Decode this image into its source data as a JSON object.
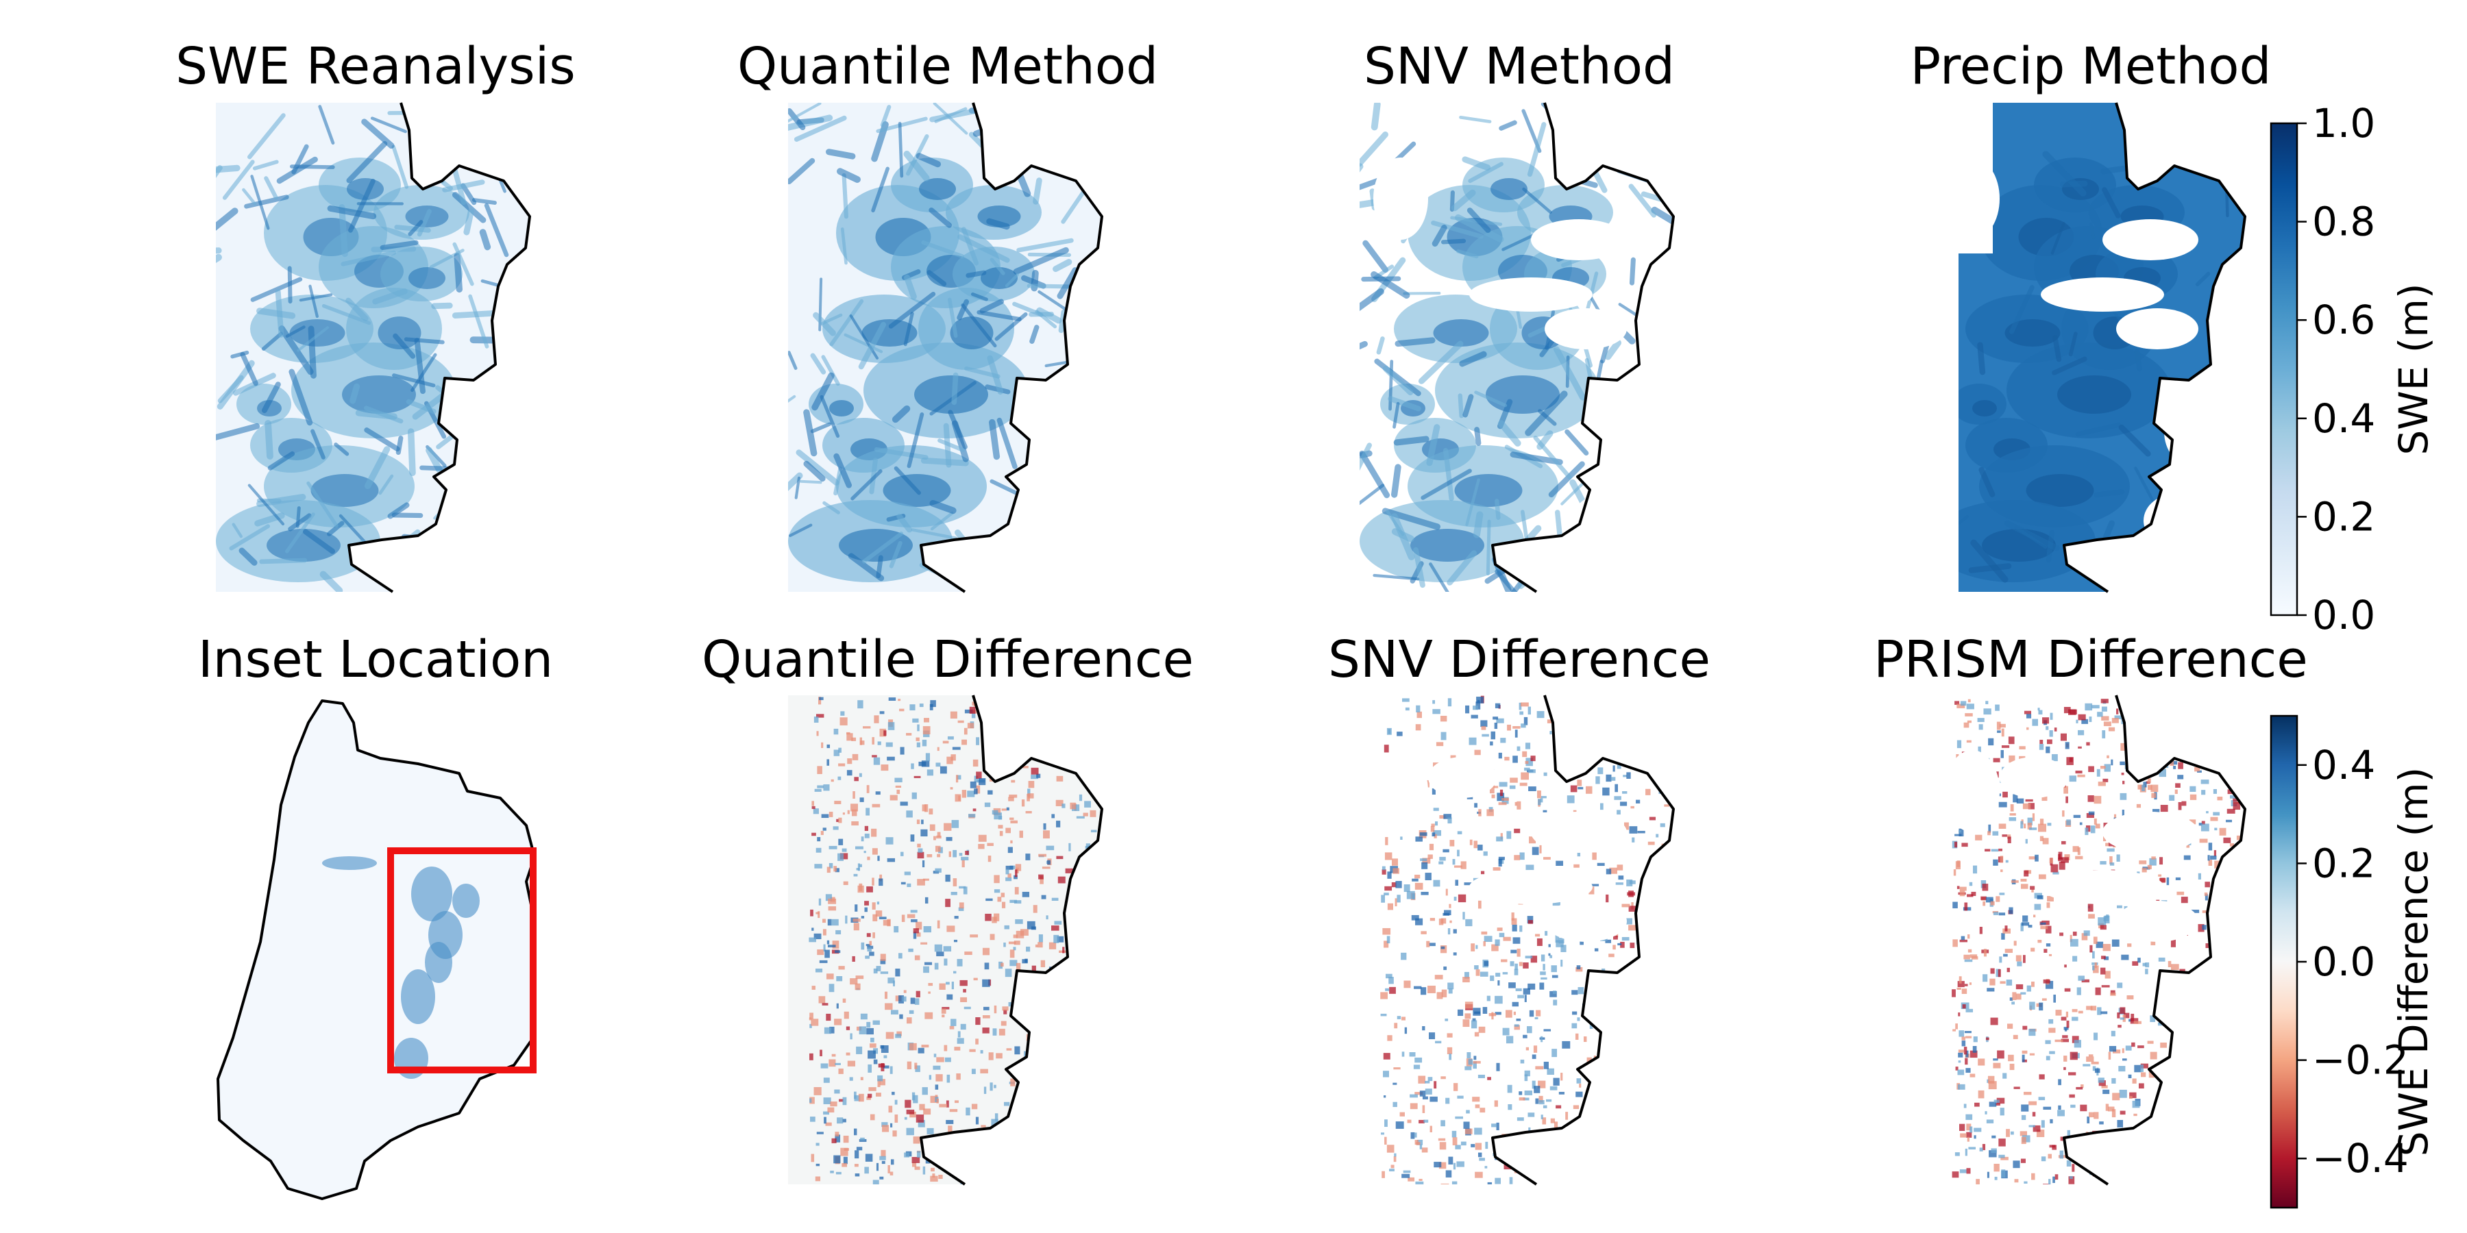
{
  "chart_data": {
    "type": "heatmap",
    "layout": "2 rows x 4 panels, shared colorbar per row",
    "panels": [
      {
        "title": "SWE Reanalysis",
        "row": 1,
        "col": 1,
        "kind": "swe_map"
      },
      {
        "title": "Quantile Method",
        "row": 1,
        "col": 2,
        "kind": "swe_map"
      },
      {
        "title": "SNV Method",
        "row": 1,
        "col": 3,
        "kind": "swe_map"
      },
      {
        "title": "Precip Method",
        "row": 1,
        "col": 4,
        "kind": "swe_map"
      },
      {
        "title": "Inset Location",
        "row": 2,
        "col": 1,
        "kind": "locator_map"
      },
      {
        "title": "Quantile Difference",
        "row": 2,
        "col": 2,
        "kind": "difference_map"
      },
      {
        "title": "SNV Difference",
        "row": 2,
        "col": 3,
        "kind": "difference_map"
      },
      {
        "title": "PRISM Difference",
        "row": 2,
        "col": 4,
        "kind": "difference_map"
      }
    ],
    "colorbars": [
      {
        "label": "SWE (m)",
        "cmap": "Blues",
        "range": [
          0.0,
          1.0
        ],
        "ticks": [
          "0.0",
          "0.2",
          "0.4",
          "0.6",
          "0.8",
          "1.0"
        ],
        "tick_values": [
          0.0,
          0.2,
          0.4,
          0.6,
          0.8,
          1.0
        ],
        "colors": [
          "#f7fbff",
          "#deebf7",
          "#c6dbef",
          "#9ecae1",
          "#6baed6",
          "#4292c6",
          "#2171b5",
          "#08519c",
          "#08306b"
        ]
      },
      {
        "label": "SWE Difference (m)",
        "cmap": "RdBu",
        "range": [
          -0.5,
          0.5
        ],
        "ticks": [
          "−0.4",
          "−0.2",
          "0.0",
          "0.2",
          "0.4"
        ],
        "tick_values": [
          -0.4,
          -0.2,
          0.0,
          0.2,
          0.4
        ],
        "colors": [
          "#67001f",
          "#b2182b",
          "#d6604d",
          "#f4a582",
          "#fddbc7",
          "#f7f7f7",
          "#d1e5f0",
          "#92c5de",
          "#4393c3",
          "#2166ac",
          "#053061"
        ]
      }
    ],
    "inset_box_color": "#ee1111",
    "boundary_color": "#000000"
  }
}
